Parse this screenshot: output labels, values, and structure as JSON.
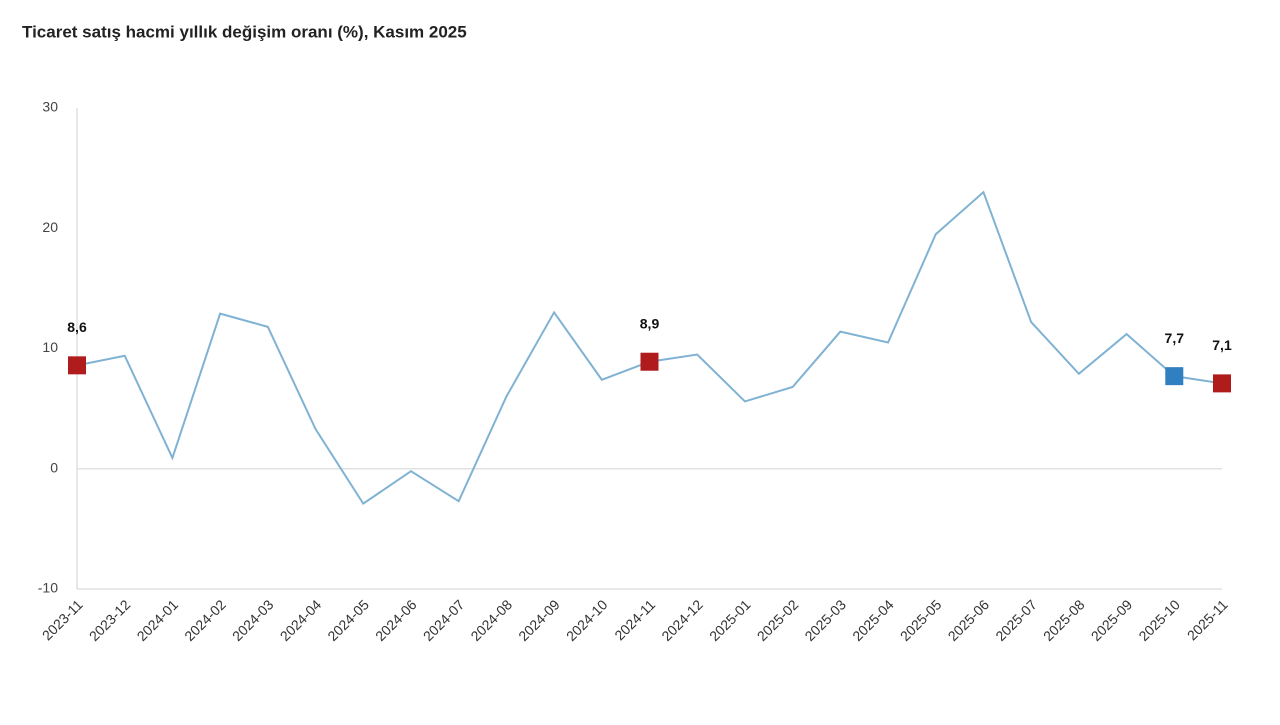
{
  "chart_data": {
    "type": "line",
    "title": "Ticaret satış hacmi yıllık değişim oranı (%), Kasım 2025",
    "categories": [
      "2023-11",
      "2023-12",
      "2024-01",
      "2024-02",
      "2024-03",
      "2024-04",
      "2024-05",
      "2024-06",
      "2024-07",
      "2024-08",
      "2024-09",
      "2024-10",
      "2024-11",
      "2024-12",
      "2025-01",
      "2025-02",
      "2025-03",
      "2025-04",
      "2025-05",
      "2025-06",
      "2025-07",
      "2025-08",
      "2025-09",
      "2025-10",
      "2025-11"
    ],
    "values": [
      8.6,
      9.4,
      0.9,
      12.9,
      11.8,
      3.3,
      -2.9,
      -0.2,
      -2.7,
      6.0,
      13.0,
      7.4,
      8.9,
      9.5,
      5.6,
      6.8,
      11.4,
      10.5,
      19.5,
      23.0,
      12.2,
      7.9,
      11.2,
      7.7,
      7.1
    ],
    "value_labels": [
      "8,6",
      null,
      null,
      null,
      null,
      null,
      null,
      null,
      null,
      null,
      null,
      null,
      "8,9",
      null,
      null,
      null,
      null,
      null,
      null,
      null,
      null,
      null,
      null,
      "7,7",
      "7,1"
    ],
    "marker_colors": [
      "#b01c1c",
      null,
      null,
      null,
      null,
      null,
      null,
      null,
      null,
      null,
      null,
      null,
      "#b01c1c",
      null,
      null,
      null,
      null,
      null,
      null,
      null,
      null,
      null,
      null,
      "#2f7fc1",
      "#b01c1c"
    ],
    "color": "#7fb2d3",
    "ylim": [
      -10,
      30
    ],
    "yticks": [
      30,
      20,
      10,
      0,
      -10
    ]
  }
}
